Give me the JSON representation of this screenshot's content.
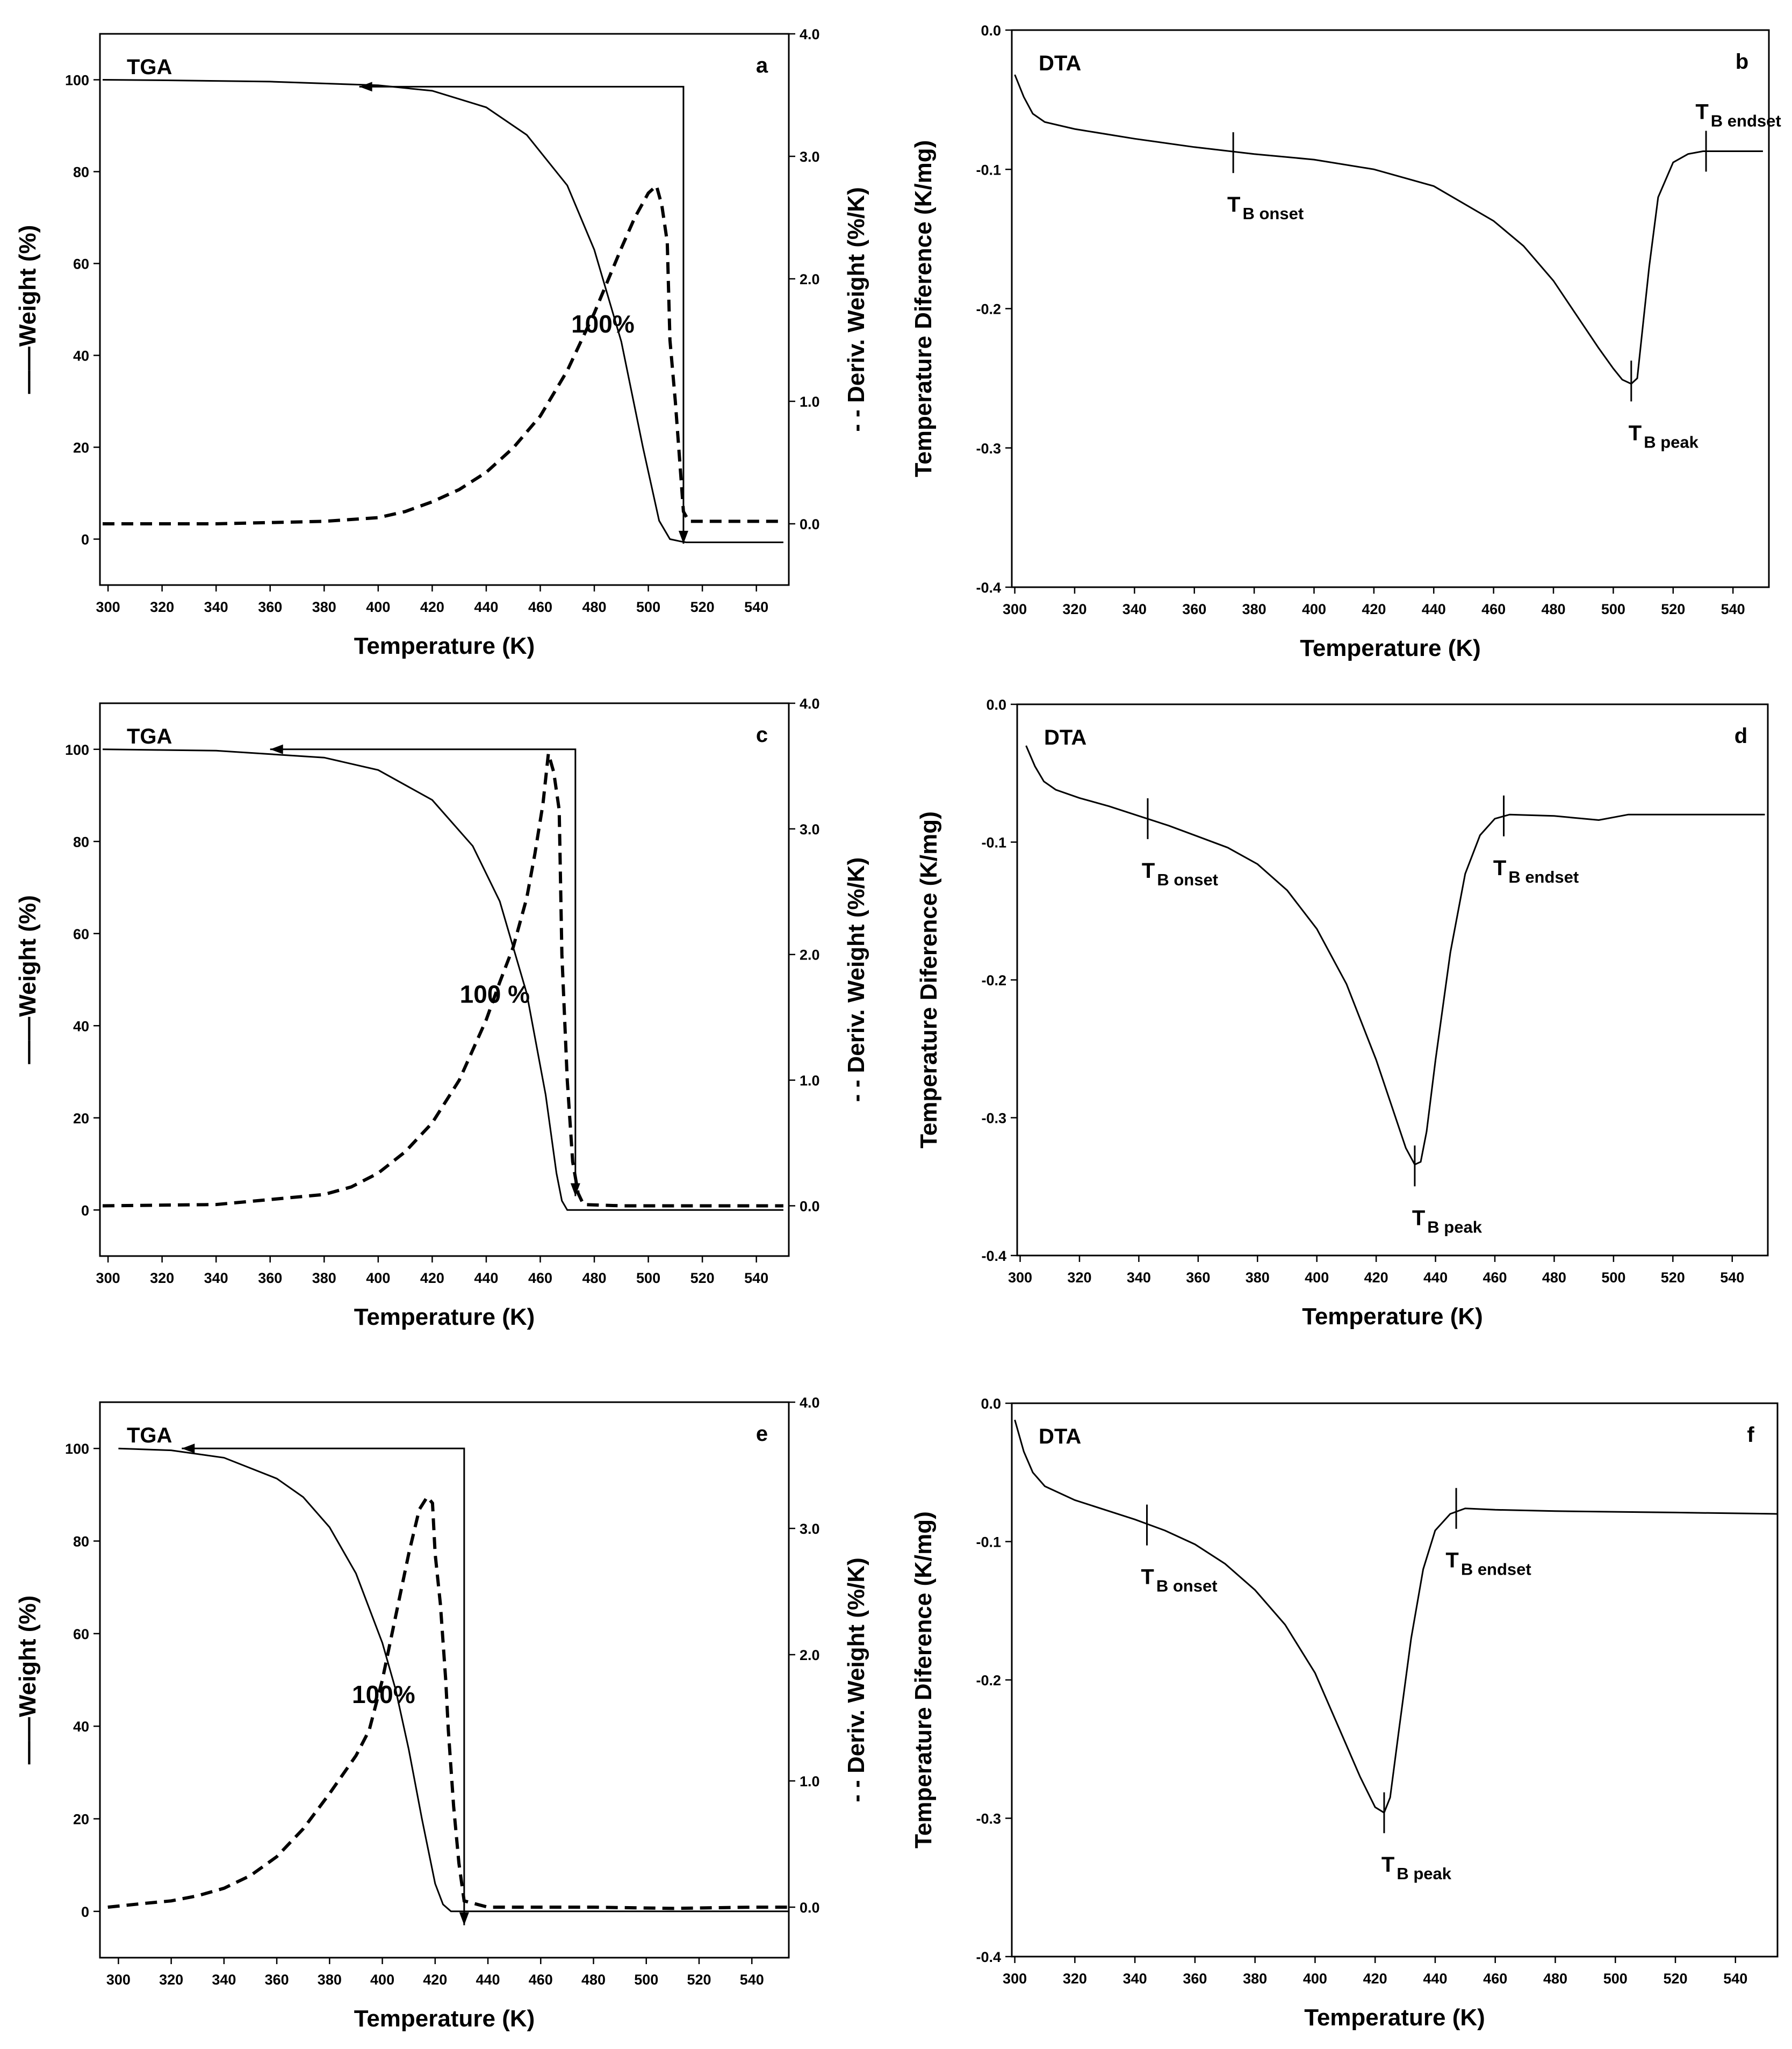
{
  "chart_data": [
    {
      "id": "a",
      "type": "line",
      "panel_label": "a",
      "inset_title": "TGA",
      "xlabel": "Temperature (K)",
      "ylabel": "Weight (%)",
      "y2label": "Deriv. Weight (%/K)",
      "ylabel_prefix": "——",
      "y2label_prefix": "- -",
      "xlim": [
        297,
        552
      ],
      "ylim": [
        -10,
        110
      ],
      "y2lim": [
        -0.5,
        4.0
      ],
      "xticks": [
        300,
        320,
        340,
        360,
        380,
        400,
        420,
        440,
        460,
        480,
        500,
        520,
        540
      ],
      "yticks": [
        0,
        20,
        40,
        60,
        80,
        100
      ],
      "y2ticks": [
        0.0,
        1.0,
        2.0,
        3.0,
        4.0
      ],
      "y2tick_labels": [
        "0.0",
        "1.0",
        "2.0",
        "3.0",
        "4.0"
      ],
      "annotation": "100%",
      "arrow": {
        "x_start": 393,
        "x_vertical": 513,
        "y_top": 98.5,
        "y_bottom": -1
      },
      "series": [
        {
          "name": "Weight (%)",
          "axis": "left",
          "style": "solid",
          "x": [
            298,
            320,
            360,
            400,
            420,
            440,
            455,
            470,
            480,
            490,
            498,
            504,
            508,
            512,
            514,
            530,
            550
          ],
          "y": [
            100,
            99.9,
            99.6,
            98.8,
            97.6,
            94,
            88,
            77,
            63,
            43,
            20,
            4,
            0,
            -0.5,
            -0.7,
            -0.7,
            -0.7
          ]
        },
        {
          "name": "Deriv. Weight (%/K)",
          "axis": "right",
          "style": "dashed",
          "x": [
            298,
            340,
            380,
            400,
            410,
            420,
            430,
            440,
            450,
            460,
            470,
            480,
            490,
            495,
            500,
            503,
            505,
            507,
            508,
            510,
            512,
            513,
            515,
            530,
            550
          ],
          "y": [
            0.0,
            0.0,
            0.02,
            0.05,
            0.1,
            0.18,
            0.28,
            0.42,
            0.62,
            0.88,
            1.25,
            1.72,
            2.25,
            2.5,
            2.7,
            2.76,
            2.6,
            2.3,
            1.5,
            1.0,
            0.4,
            0.1,
            0.02,
            0.02,
            0.02
          ]
        }
      ]
    },
    {
      "id": "b",
      "type": "line",
      "panel_label": "b",
      "inset_title": "DTA",
      "xlabel": "Temperature (K)",
      "ylabel": "Temperature Diference (K/mg)",
      "xlim": [
        299,
        552
      ],
      "ylim": [
        -0.4,
        0.0
      ],
      "xticks": [
        300,
        320,
        340,
        360,
        380,
        400,
        420,
        440,
        460,
        480,
        500,
        520,
        540
      ],
      "yticks": [
        -0.4,
        -0.3,
        -0.2,
        -0.1,
        0.0
      ],
      "ytick_labels": [
        "-0.4",
        "-0.3",
        "-0.2",
        "-0.1",
        "0.0"
      ],
      "markers": [
        {
          "x": 373,
          "y": -0.088,
          "label": "T",
          "sub": "B onset",
          "position": "below"
        },
        {
          "x": 506,
          "y": -0.252,
          "label": "T",
          "sub": "B peak",
          "position": "below"
        },
        {
          "x": 531,
          "y": -0.087,
          "label": "T",
          "sub": "B endset",
          "position": "above"
        }
      ],
      "series": [
        {
          "name": "DTA",
          "style": "solid",
          "x": [
            300,
            303,
            306,
            310,
            320,
            340,
            360,
            380,
            400,
            420,
            440,
            460,
            470,
            480,
            490,
            495,
            500,
            503,
            506,
            508,
            510,
            512,
            515,
            520,
            525,
            530,
            540,
            550
          ],
          "y": [
            -0.032,
            -0.048,
            -0.06,
            -0.066,
            -0.071,
            -0.078,
            -0.084,
            -0.089,
            -0.093,
            -0.1,
            -0.112,
            -0.137,
            -0.155,
            -0.18,
            -0.212,
            -0.228,
            -0.243,
            -0.251,
            -0.254,
            -0.25,
            -0.21,
            -0.17,
            -0.12,
            -0.095,
            -0.089,
            -0.087,
            -0.087,
            -0.087
          ]
        }
      ]
    },
    {
      "id": "c",
      "type": "line",
      "panel_label": "c",
      "inset_title": "TGA",
      "xlabel": "Temperature (K)",
      "ylabel": "Weight (%)",
      "y2label": "Deriv. Weight (%/K)",
      "ylabel_prefix": "——",
      "y2label_prefix": "- -",
      "xlim": [
        297,
        552
      ],
      "ylim": [
        -10,
        110
      ],
      "y2lim": [
        -0.4,
        4.0
      ],
      "xticks": [
        300,
        320,
        340,
        360,
        380,
        400,
        420,
        440,
        460,
        480,
        500,
        520,
        540
      ],
      "yticks": [
        0,
        20,
        40,
        60,
        80,
        100
      ],
      "y2ticks": [
        0.0,
        1.0,
        2.0,
        3.0,
        4.0
      ],
      "y2tick_labels": [
        "0.0",
        "1.0",
        "2.0",
        "3.0",
        "4.0"
      ],
      "annotation": "100 %",
      "arrow": {
        "x_start": 360,
        "x_vertical": 473,
        "y_top": 100,
        "y_bottom": 3
      },
      "series": [
        {
          "name": "Weight (%)",
          "axis": "left",
          "style": "solid",
          "x": [
            298,
            340,
            380,
            400,
            420,
            435,
            445,
            455,
            462,
            466,
            468,
            470,
            490,
            550
          ],
          "y": [
            100,
            99.7,
            98.2,
            95.5,
            89,
            79,
            67,
            47,
            25,
            8,
            2,
            0,
            0,
            0
          ]
        },
        {
          "name": "Deriv. Weight (%/K)",
          "axis": "right",
          "style": "dashed",
          "x": [
            298,
            340,
            360,
            380,
            390,
            400,
            410,
            420,
            430,
            440,
            445,
            450,
            455,
            458,
            461,
            463,
            465,
            467,
            468,
            470,
            472,
            474,
            476,
            490,
            520,
            550
          ],
          "y": [
            0.0,
            0.01,
            0.05,
            0.09,
            0.15,
            0.26,
            0.43,
            0.66,
            1.0,
            1.48,
            1.78,
            2.06,
            2.45,
            2.8,
            3.2,
            3.6,
            3.45,
            3.15,
            2.0,
            1.0,
            0.35,
            0.1,
            0.01,
            0.0,
            0.0,
            0.0
          ]
        }
      ]
    },
    {
      "id": "d",
      "type": "line",
      "panel_label": "d",
      "inset_title": "DTA",
      "xlabel": "Temperature (K)",
      "ylabel": "Temperature Diference (K/mg)",
      "xlim": [
        299,
        552
      ],
      "ylim": [
        -0.4,
        0.0
      ],
      "xticks": [
        300,
        320,
        340,
        360,
        380,
        400,
        420,
        440,
        460,
        480,
        500,
        520,
        540
      ],
      "yticks": [
        -0.4,
        -0.3,
        -0.2,
        -0.1,
        0.0
      ],
      "ytick_labels": [
        "-0.4",
        "-0.3",
        "-0.2",
        "-0.1",
        "0.0"
      ],
      "markers": [
        {
          "x": 343,
          "y": -0.083,
          "label": "T",
          "sub": "B onset",
          "position": "below"
        },
        {
          "x": 433,
          "y": -0.335,
          "label": "T",
          "sub": "B peak",
          "position": "below"
        },
        {
          "x": 463,
          "y": -0.081,
          "label": "T",
          "sub": "B endset",
          "position": "below"
        }
      ],
      "series": [
        {
          "name": "DTA",
          "style": "solid",
          "x": [
            302,
            305,
            308,
            312,
            320,
            330,
            340,
            350,
            360,
            370,
            380,
            390,
            400,
            410,
            420,
            425,
            430,
            433,
            435,
            437,
            440,
            445,
            450,
            455,
            460,
            465,
            480,
            495,
            505,
            520,
            551
          ],
          "y": [
            -0.03,
            -0.045,
            -0.056,
            -0.062,
            -0.068,
            -0.074,
            -0.081,
            -0.088,
            -0.096,
            -0.104,
            -0.116,
            -0.135,
            -0.163,
            -0.203,
            -0.258,
            -0.29,
            -0.322,
            -0.334,
            -0.332,
            -0.31,
            -0.258,
            -0.18,
            -0.123,
            -0.095,
            -0.083,
            -0.08,
            -0.081,
            -0.084,
            -0.08,
            -0.08,
            -0.08
          ]
        }
      ]
    },
    {
      "id": "e",
      "type": "line",
      "panel_label": "e",
      "inset_title": "TGA",
      "xlabel": "Temperature (K)",
      "ylabel": "Weight (%)",
      "y2label": "Deriv. Weight (%/K)",
      "ylabel_prefix": "——",
      "y2label_prefix": "- -",
      "xlim": [
        293,
        554
      ],
      "ylim": [
        -10,
        110
      ],
      "y2lim": [
        -0.4,
        4.0
      ],
      "xticks": [
        300,
        320,
        340,
        360,
        380,
        400,
        420,
        440,
        460,
        480,
        500,
        520,
        540
      ],
      "yticks": [
        0,
        20,
        40,
        60,
        80,
        100
      ],
      "y2ticks": [
        0.0,
        1.0,
        2.0,
        3.0,
        4.0
      ],
      "y2tick_labels": [
        "0.0",
        "1.0",
        "2.0",
        "3.0",
        "4.0"
      ],
      "annotation": "100%",
      "arrow": {
        "x_start": 324,
        "x_vertical": 431,
        "y_top": 100,
        "y_bottom": -3
      },
      "series": [
        {
          "name": "Weight (%)",
          "axis": "left",
          "style": "solid",
          "x": [
            300,
            320,
            340,
            360,
            370,
            380,
            390,
            400,
            405,
            410,
            415,
            420,
            423,
            426,
            430,
            450,
            554
          ],
          "y": [
            100,
            99.6,
            98,
            93.5,
            89.5,
            83,
            73,
            58,
            48,
            35,
            20,
            6,
            1.5,
            0,
            0,
            0,
            0
          ]
        },
        {
          "name": "Deriv. Weight (%/K)",
          "axis": "right",
          "style": "dashed",
          "x": [
            296,
            310,
            320,
            330,
            340,
            350,
            360,
            370,
            380,
            390,
            395,
            400,
            405,
            410,
            414,
            417,
            419,
            420,
            422,
            424,
            425,
            427,
            429,
            431,
            440,
            480,
            510,
            540,
            554
          ],
          "y": [
            0.0,
            0.03,
            0.05,
            0.09,
            0.15,
            0.25,
            0.4,
            0.62,
            0.9,
            1.2,
            1.4,
            1.8,
            2.3,
            2.8,
            3.15,
            3.25,
            3.2,
            2.8,
            2.4,
            1.8,
            1.4,
            0.8,
            0.35,
            0.05,
            0.0,
            0.0,
            -0.01,
            0.0,
            0.0
          ]
        }
      ]
    },
    {
      "id": "f",
      "type": "line",
      "panel_label": "f",
      "inset_title": "DTA",
      "xlabel": "Temperature (K)",
      "ylabel": "Temperature Diference (K/mg)",
      "xlim": [
        299,
        554
      ],
      "ylim": [
        -0.4,
        0.0
      ],
      "xticks": [
        300,
        320,
        340,
        360,
        380,
        400,
        420,
        440,
        460,
        480,
        500,
        520,
        540
      ],
      "yticks": [
        -0.4,
        -0.3,
        -0.2,
        -0.1,
        0.0
      ],
      "ytick_labels": [
        "-0.4",
        "-0.3",
        "-0.2",
        "-0.1",
        "0.0"
      ],
      "markers": [
        {
          "x": 344,
          "y": -0.088,
          "label": "T",
          "sub": "B onset",
          "position": "below"
        },
        {
          "x": 423,
          "y": -0.296,
          "label": "T",
          "sub": "B peak",
          "position": "below"
        },
        {
          "x": 447,
          "y": -0.076,
          "label": "T",
          "sub": "B endset",
          "position": "below"
        }
      ],
      "series": [
        {
          "name": "DTA",
          "style": "solid",
          "x": [
            300,
            303,
            306,
            310,
            320,
            330,
            340,
            350,
            360,
            370,
            380,
            390,
            400,
            410,
            415,
            420,
            423,
            425,
            428,
            432,
            436,
            440,
            445,
            450,
            460,
            480,
            520,
            554
          ],
          "y": [
            -0.012,
            -0.035,
            -0.05,
            -0.06,
            -0.07,
            -0.077,
            -0.084,
            -0.092,
            -0.102,
            -0.116,
            -0.135,
            -0.16,
            -0.195,
            -0.245,
            -0.27,
            -0.292,
            -0.296,
            -0.285,
            -0.235,
            -0.17,
            -0.12,
            -0.092,
            -0.08,
            -0.076,
            -0.077,
            -0.078,
            -0.079,
            -0.08
          ]
        }
      ]
    }
  ]
}
